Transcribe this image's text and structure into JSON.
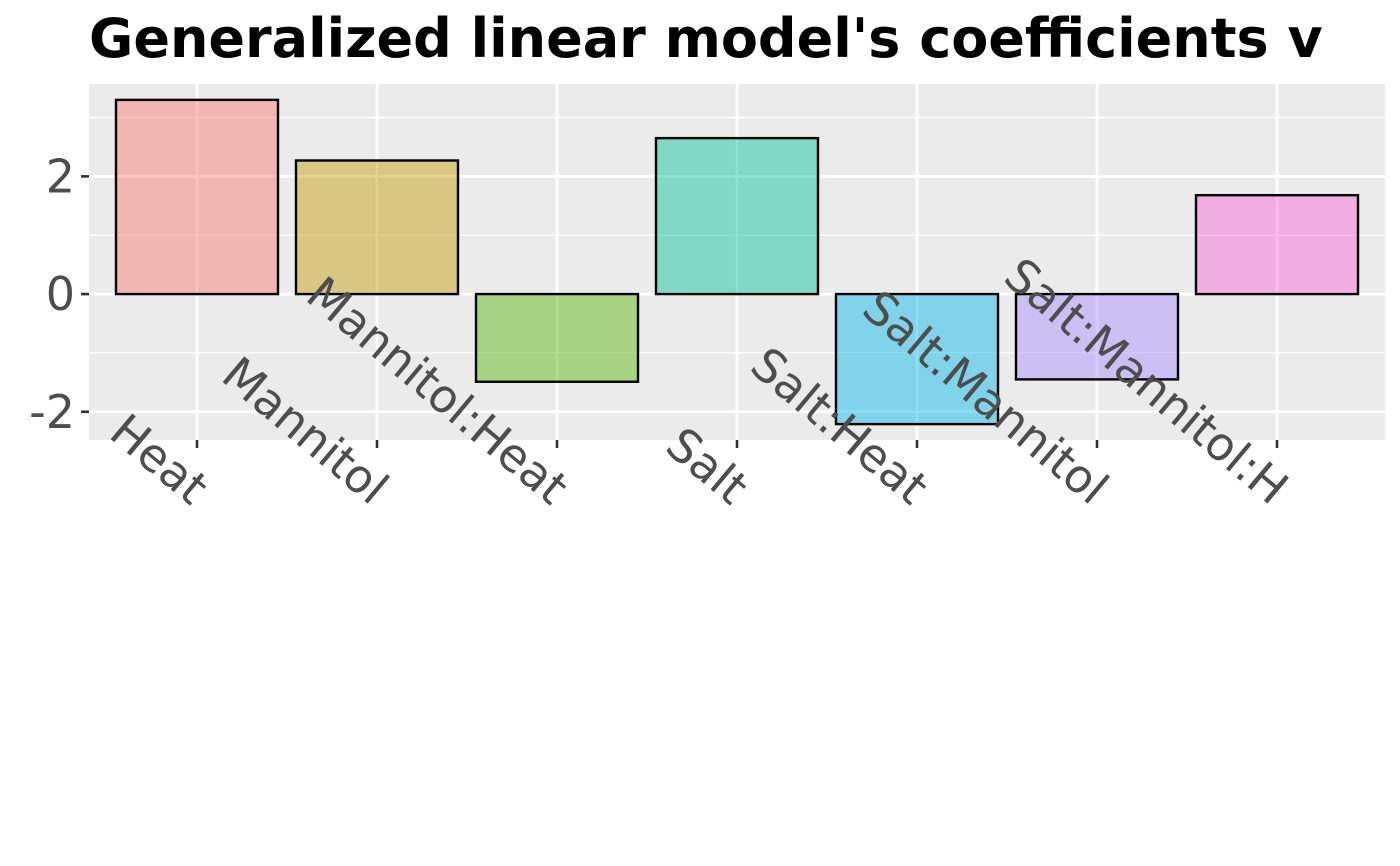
{
  "chart_data": {
    "type": "bar",
    "title": "Generalized linear model's coefficients v",
    "xlabel": "",
    "ylabel": "",
    "categories": [
      "Heat",
      "Mannitol",
      "Mannitol:Heat",
      "Salt",
      "Salt:Heat",
      "Salt:Mannitol",
      "Salt:Mannitol:H"
    ],
    "values": [
      3.3,
      2.27,
      -1.49,
      2.65,
      -2.21,
      -1.45,
      1.68
    ],
    "ylim": [
      -2.48,
      3.57
    ],
    "yticks": [
      -2,
      0,
      2
    ],
    "ytick_labels": [
      "-2",
      "0",
      "2"
    ],
    "grid": true,
    "legend": "none",
    "colors": [
      "#F8766D",
      "#C49A00",
      "#53B400",
      "#00C094",
      "#00B6EB",
      "#A58AFF",
      "#FB61D7"
    ],
    "panel_background": "#EBEBEB"
  }
}
